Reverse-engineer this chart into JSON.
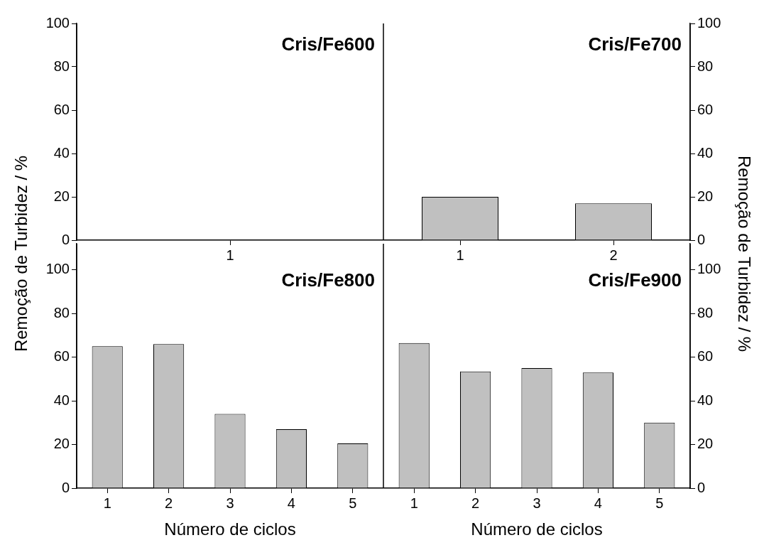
{
  "chart_data": [
    {
      "type": "bar",
      "title": "Cris/Fe600",
      "ylabel": "Remoção de Turbidez / %",
      "categories": [
        "1"
      ],
      "series": [
        {
          "color": "#c0c0c0",
          "values": [
            0
          ]
        }
      ],
      "ylim": [
        0,
        100
      ],
      "yticks": [
        0,
        20,
        40,
        60,
        80,
        100
      ]
    },
    {
      "type": "bar",
      "title": "Cris/Fe700",
      "y2label": "Remoção de Turbidez / %",
      "categories": [
        "1",
        "2"
      ],
      "series": [
        {
          "color": "#c0c0c0",
          "values": [
            20,
            17
          ],
          "axis": "y2"
        }
      ],
      "y2lim": [
        0,
        100
      ],
      "y2ticks": [
        0,
        20,
        40,
        60,
        80,
        100
      ]
    },
    {
      "type": "bar",
      "title": "Cris/Fe800",
      "xlabel": "Número de ciclos",
      "categories": [
        "1",
        "2",
        "3",
        "4",
        "5"
      ],
      "series": [
        {
          "color": "#c0c0c0",
          "values": [
            65,
            66,
            34,
            27,
            20.5
          ]
        }
      ],
      "ylim": [
        0,
        112
      ],
      "yticks": [
        0,
        20,
        40,
        60,
        80,
        100
      ]
    },
    {
      "type": "bar",
      "title": "Cris/Fe900",
      "xlabel": "Número de ciclos",
      "categories": [
        "1",
        "2",
        "3",
        "4",
        "5"
      ],
      "series": [
        {
          "color": "#c0c0c0",
          "values": [
            66.5,
            53.5,
            55,
            53,
            30
          ],
          "axis": "y2"
        }
      ],
      "y2lim": [
        0,
        112
      ],
      "y2ticks": [
        0,
        20,
        40,
        60,
        80,
        100
      ]
    }
  ]
}
